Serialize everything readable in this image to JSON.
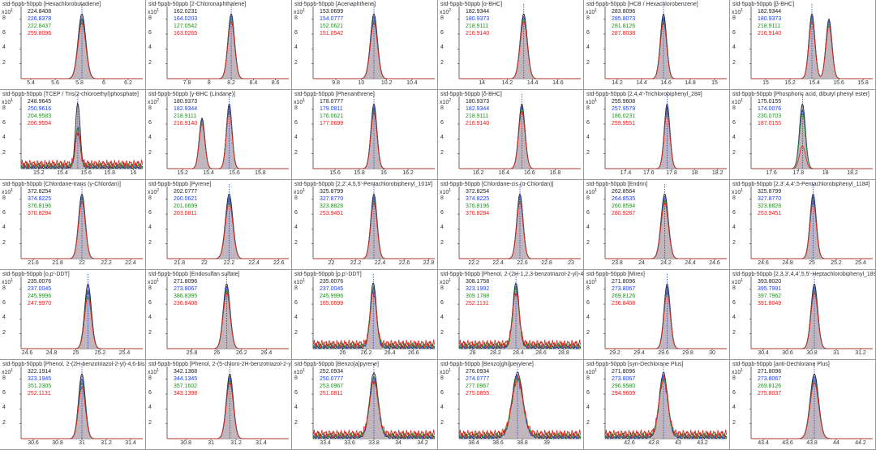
{
  "chart_data": [
    {
      "title": "std-5ppb-50ppb [Hexachlorobutadiene]",
      "mz": [
        "224.8408",
        "226.8378",
        "222.8437",
        "259.8096"
      ],
      "x_ticks": [
        "5.4",
        "5.6",
        "5.8",
        "6",
        "6.2"
      ],
      "xlim": [
        5.32,
        6.32
      ],
      "rt": 5.82,
      "width": 0.032,
      "y_exp": "1",
      "y_ticks": [
        "8",
        "6",
        "4",
        "2"
      ],
      "ymax": 9.5,
      "traces": [
        1.0,
        0.93,
        0.9,
        0.86
      ],
      "second_peak": null,
      "noise": false
    },
    {
      "title": "std-5ppb-50ppb [2-Chloronaphthalene]",
      "mz": [
        "162.0231",
        "164.0203",
        "127.0542",
        "163.0265"
      ],
      "x_ticks": [
        "7.8",
        "8",
        "8.2",
        "8.4",
        "8.6"
      ],
      "xlim": [
        7.62,
        8.72
      ],
      "rt": 8.2,
      "width": 0.03,
      "y_exp": "1",
      "y_ticks": [
        "8",
        "6",
        "4",
        "2"
      ],
      "ymax": 9.5,
      "traces": [
        1.0,
        0.96,
        0.92,
        0.88
      ],
      "second_peak": null,
      "noise": false
    },
    {
      "title": "std-5ppb-50ppb [Acenaphthene]",
      "mz": [
        "153.0699",
        "154.0777",
        "152.0621",
        "151.0542"
      ],
      "x_ticks": [
        "9.8",
        "10",
        "10.2",
        "10.4"
      ],
      "xlim": [
        9.62,
        10.58
      ],
      "rt": 10.1,
      "width": 0.028,
      "y_exp": "1",
      "y_ticks": [
        "8",
        "6",
        "4",
        "2"
      ],
      "ymax": 9.5,
      "traces": [
        1.0,
        0.95,
        0.9,
        0.86
      ],
      "second_peak": null,
      "noise": false
    },
    {
      "title": "std-5ppb-50ppb [α-BHC]",
      "mz": [
        "182.9344",
        "180.9373",
        "218.9111",
        "216.9140"
      ],
      "x_ticks": [
        "14",
        "14.2",
        "14.4",
        "14.6"
      ],
      "xlim": [
        13.82,
        14.78
      ],
      "rt": 14.33,
      "width": 0.028,
      "y_exp": "2",
      "y_ticks": [
        "8",
        "6",
        "4",
        "2"
      ],
      "ymax": 9.5,
      "traces": [
        1.0,
        0.95,
        0.92,
        0.88
      ],
      "second_peak": null,
      "noise": false
    },
    {
      "title": "std-5ppb-50ppb [HCB / Hexachlorobenzene]",
      "mz": [
        "283.8096",
        "285.8073",
        "281.8126",
        "287.8038"
      ],
      "x_ticks": [
        "14.2",
        "14.4",
        "14.6",
        "14.8",
        "15"
      ],
      "xlim": [
        14.1,
        15.1
      ],
      "rt": 14.58,
      "width": 0.026,
      "y_exp": "1",
      "y_ticks": [
        "8",
        "6",
        "4",
        "2"
      ],
      "ymax": 9.5,
      "traces": [
        1.0,
        0.94,
        0.9,
        0.86
      ],
      "second_peak": null,
      "noise": false
    },
    {
      "title": "std-5ppb-50ppb [β-BHC]",
      "mz": [
        "182.9344",
        "180.9373",
        "218.9111",
        "216.9140"
      ],
      "x_ticks": [
        "15",
        "15.2",
        "15.4",
        "15.6",
        "15.8"
      ],
      "xlim": [
        14.88,
        15.88
      ],
      "rt": 15.38,
      "width": 0.025,
      "y_exp": "1",
      "y_ticks": [
        "8",
        "6",
        "4",
        "2"
      ],
      "ymax": 9.5,
      "traces": [
        1.0,
        0.96,
        0.92,
        0.88
      ],
      "second_peak": {
        "rt": 15.52,
        "h": 0.92
      },
      "noise": false
    },
    {
      "title": "std-5ppb-50ppb [TCEP / Tris(2-chloroethyl)phosphate]",
      "mz": [
        "248.9645",
        "250.9616",
        "204.9583",
        "206.9554"
      ],
      "x_ticks": [
        "15.2",
        "15.4",
        "15.6",
        "15.8",
        "16"
      ],
      "xlim": [
        15.05,
        16.08
      ],
      "rt": 15.53,
      "width": 0.02,
      "y_exp": "1",
      "y_ticks": [
        "8",
        "6",
        "4",
        "2"
      ],
      "ymax": 9.5,
      "traces": [
        1.0,
        0.6,
        0.55,
        0.5
      ],
      "second_peak": null,
      "noise": true
    },
    {
      "title": "std-5ppb-50ppb [γ-BHC (Lindane)]",
      "mz": [
        "180.9373",
        "182.9344",
        "218.9111",
        "216.9140"
      ],
      "x_ticks": [
        "15.2",
        "15.4",
        "15.6",
        "15.8"
      ],
      "xlim": [
        15.08,
        16.02
      ],
      "rt": 15.56,
      "width": 0.022,
      "y_exp": "2",
      "y_ticks": [
        "8",
        "6",
        "4",
        "2"
      ],
      "ymax": 9.5,
      "traces": [
        1.0,
        0.96,
        0.92,
        0.88
      ],
      "second_peak": {
        "rt": 15.35,
        "h": 0.78
      },
      "noise": false
    },
    {
      "title": "std-5ppb-50ppb [Phenanthrene]",
      "mz": [
        "178.0777",
        "179.0811",
        "176.0621",
        "177.0699"
      ],
      "x_ticks": [
        "15.6",
        "15.8",
        "16",
        "16.2"
      ],
      "xlim": [
        15.42,
        16.42
      ],
      "rt": 15.92,
      "width": 0.025,
      "y_exp": "1",
      "y_ticks": [
        "8",
        "6",
        "4",
        "2"
      ],
      "ymax": 9.5,
      "traces": [
        1.0,
        0.94,
        0.9,
        0.86
      ],
      "second_peak": null,
      "noise": false
    },
    {
      "title": "std-5ppb-50ppb [δ-BHC]",
      "mz": [
        "180.9373",
        "182.9344",
        "218.9111",
        "216.9140"
      ],
      "x_ticks": [
        "16.2",
        "16.4",
        "16.6",
        "16.8"
      ],
      "xlim": [
        16.05,
        17.0
      ],
      "rt": 16.54,
      "width": 0.025,
      "y_exp": "2",
      "y_ticks": [
        "8",
        "6",
        "4",
        "2"
      ],
      "ymax": 9.5,
      "traces": [
        1.0,
        0.95,
        0.92,
        0.88
      ],
      "second_peak": null,
      "noise": false
    },
    {
      "title": "std-5ppb-50ppb [2,4,4'-Trichlorobiphenyl_28#]",
      "mz": [
        "255.9608",
        "257.9579",
        "186.0231",
        "259.9551"
      ],
      "x_ticks": [
        "17.4",
        "17.6",
        "17.8",
        "18",
        "18.2"
      ],
      "xlim": [
        17.22,
        18.28
      ],
      "rt": 17.76,
      "width": 0.025,
      "y_exp": "1",
      "y_ticks": [
        "8",
        "6",
        "4",
        "2"
      ],
      "ymax": 9.5,
      "traces": [
        1.0,
        0.94,
        0.9,
        0.86
      ],
      "second_peak": null,
      "noise": false
    },
    {
      "title": "std-5ppb-50ppb [Phosphoric acid, dibutyl phenyl ester]",
      "mz": [
        "175.0155",
        "174.0076",
        "230.0703",
        "187.0155"
      ],
      "x_ticks": [
        "17.6",
        "17.8",
        "18",
        "18.2"
      ],
      "xlim": [
        17.45,
        18.35
      ],
      "rt": 17.83,
      "width": 0.022,
      "y_exp": "1",
      "y_ticks": [
        "8",
        "6",
        "4",
        "2"
      ],
      "ymax": 9.5,
      "traces": [
        1.0,
        0.9,
        0.85,
        0.35
      ],
      "second_peak": null,
      "noise": false
    },
    {
      "title": "std-5ppb-50ppb [Chlordane-trans (γ-Chlordan)]",
      "mz": [
        "372.8254",
        "374.8225",
        "376.8196",
        "370.8284"
      ],
      "x_ticks": [
        "21.6",
        "21.8",
        "22",
        "22.2",
        "22.4"
      ],
      "xlim": [
        21.5,
        22.5
      ],
      "rt": 22.0,
      "width": 0.028,
      "y_exp": "1",
      "y_ticks": [
        "8",
        "6",
        "4",
        "2"
      ],
      "ymax": 9.5,
      "traces": [
        1.0,
        0.95,
        0.92,
        0.88
      ],
      "second_peak": null,
      "noise": false
    },
    {
      "title": "std-5ppb-50ppb [Pyrene]",
      "mz": [
        "202.0777",
        "200.0621",
        "201.0699",
        "203.0811"
      ],
      "x_ticks": [
        "21.8",
        "22",
        "22.2",
        "22.4",
        "22.6"
      ],
      "xlim": [
        21.7,
        22.68
      ],
      "rt": 22.2,
      "width": 0.03,
      "y_exp": "2",
      "y_ticks": [
        "8",
        "6",
        "4",
        "2"
      ],
      "ymax": 9.5,
      "traces": [
        1.0,
        0.94,
        0.9,
        0.86
      ],
      "second_peak": null,
      "noise": false
    },
    {
      "title": "std-5ppb-50ppb [2,2',4,5,5'-Pentachlorobiphenyl_101#]",
      "mz": [
        "325.8799",
        "327.8770",
        "323.8828",
        "253.9451"
      ],
      "x_ticks": [
        "22",
        "22.2",
        "22.4",
        "22.6",
        "22.8"
      ],
      "xlim": [
        21.85,
        22.85
      ],
      "rt": 22.35,
      "width": 0.026,
      "y_exp": "1",
      "y_ticks": [
        "8",
        "6",
        "4",
        "2"
      ],
      "ymax": 9.5,
      "traces": [
        1.0,
        0.95,
        0.9,
        0.86
      ],
      "second_peak": null,
      "noise": false
    },
    {
      "title": "std-5ppb-50ppb [Chlordane-cis (α-Chlordan)]",
      "mz": [
        "372.8254",
        "374.8225",
        "376.8196",
        "370.8284"
      ],
      "x_ticks": [
        "22.2",
        "22.4",
        "22.6",
        "22.8",
        "23"
      ],
      "xlim": [
        22.08,
        23.08
      ],
      "rt": 22.58,
      "width": 0.026,
      "y_exp": "1",
      "y_ticks": [
        "8",
        "6",
        "4",
        "2"
      ],
      "ymax": 9.5,
      "traces": [
        1.0,
        0.96,
        0.92,
        0.88
      ],
      "second_peak": null,
      "noise": false
    },
    {
      "title": "std-5ppb-50ppb [Endrin]",
      "mz": [
        "262.8564",
        "264.8535",
        "260.8594",
        "280.9267"
      ],
      "x_ticks": [
        "23.8",
        "24",
        "24.2",
        "24.4",
        "24.6"
      ],
      "xlim": [
        23.7,
        24.7
      ],
      "rt": 24.19,
      "width": 0.03,
      "y_exp": "1",
      "y_ticks": [
        "8",
        "6",
        "4",
        "2"
      ],
      "ymax": 9.5,
      "traces": [
        1.0,
        0.95,
        0.9,
        0.86
      ],
      "second_peak": null,
      "noise": false
    },
    {
      "title": "std-5ppb-50ppb [2,3',4,4',5-Pentachlorobiphenyl_118#]",
      "mz": [
        "325.8799",
        "327.8770",
        "323.8828",
        "253.9451"
      ],
      "x_ticks": [
        "24.6",
        "24.8",
        "25",
        "25.2",
        "25.4"
      ],
      "xlim": [
        24.5,
        25.5
      ],
      "rt": 25.01,
      "width": 0.026,
      "y_exp": "1",
      "y_ticks": [
        "8",
        "6",
        "4",
        "2"
      ],
      "ymax": 9.5,
      "traces": [
        1.0,
        0.95,
        0.9,
        0.86
      ],
      "second_peak": null,
      "noise": false
    },
    {
      "title": "std-5ppb-50ppb [o,p'-DDT]",
      "mz": [
        "235.0076",
        "237.0045",
        "245.9996",
        "247.9970"
      ],
      "x_ticks": [
        "24.6",
        "24.8",
        "25",
        "25.2",
        "25.4"
      ],
      "xlim": [
        24.55,
        25.55
      ],
      "rt": 25.1,
      "width": 0.028,
      "y_exp": "1",
      "y_ticks": [
        "8",
        "6",
        "4",
        "2"
      ],
      "ymax": 9.5,
      "traces": [
        1.0,
        0.9,
        0.86,
        0.8
      ],
      "second_peak": null,
      "noise": false
    },
    {
      "title": "std-5ppb-50ppb [Endosulfan sulfate]",
      "mz": [
        "271.8096",
        "273.8067",
        "386.8395",
        "236.8408"
      ],
      "x_ticks": [
        "25.8",
        "26",
        "26.2",
        "26.4"
      ],
      "xlim": [
        25.6,
        26.58
      ],
      "rt": 26.08,
      "width": 0.028,
      "y_exp": "1",
      "y_ticks": [
        "8",
        "6",
        "4",
        "2"
      ],
      "ymax": 9.5,
      "traces": [
        1.0,
        0.95,
        0.9,
        0.86
      ],
      "second_peak": null,
      "noise": false
    },
    {
      "title": "std-5ppb-50ppb [p,p'-DDT]",
      "mz": [
        "235.0076",
        "237.0045",
        "245.9996",
        "165.0699"
      ],
      "x_ticks": [
        "26",
        "26.2",
        "26.4",
        "26.6"
      ],
      "xlim": [
        25.75,
        26.78
      ],
      "rt": 26.26,
      "width": 0.026,
      "y_exp": "1",
      "y_ticks": [
        "8",
        "6",
        "4",
        "2"
      ],
      "ymax": 9.5,
      "traces": [
        1.0,
        0.9,
        0.86,
        0.8
      ],
      "second_peak": null,
      "noise": true
    },
    {
      "title": "std-5ppb-50ppb [Phenol, 2-(2H-1,2,3-benzotriazol-2-yl)-4,6-bis]",
      "mz": [
        "308.1758",
        "323.1992",
        "309.1788",
        "252.1131"
      ],
      "x_ticks": [
        "28",
        "28.2",
        "28.4",
        "28.6",
        "28.8"
      ],
      "xlim": [
        27.88,
        28.95
      ],
      "rt": 28.38,
      "width": 0.028,
      "y_exp": "1",
      "y_ticks": [
        "8",
        "6",
        "4",
        "2"
      ],
      "ymax": 9.5,
      "traces": [
        1.0,
        0.92,
        0.86,
        0.8
      ],
      "second_peak": null,
      "noise": true
    },
    {
      "title": "std-5ppb-50ppb [Mirex]",
      "mz": [
        "271.8096",
        "273.8067",
        "269.8126",
        "236.8408"
      ],
      "x_ticks": [
        "29.2",
        "29.4",
        "29.6",
        "29.8",
        "30"
      ],
      "xlim": [
        29.12,
        30.12
      ],
      "rt": 29.63,
      "width": 0.026,
      "y_exp": "1",
      "y_ticks": [
        "8",
        "6",
        "4",
        "2"
      ],
      "ymax": 9.5,
      "traces": [
        1.0,
        0.95,
        0.9,
        0.86
      ],
      "second_peak": null,
      "noise": false
    },
    {
      "title": "std-5ppb-50ppb [2,3,3',4,4',5,5'-Heptachlorobiphenyl_189#]",
      "mz": [
        "393.8020",
        "395.7991",
        "397.7962",
        "391.8049"
      ],
      "x_ticks": [
        "30.4",
        "30.6",
        "30.8",
        "31",
        "31.2"
      ],
      "xlim": [
        30.3,
        31.3
      ],
      "rt": 30.82,
      "width": 0.028,
      "y_exp": "1",
      "y_ticks": [
        "8",
        "6",
        "4",
        "2"
      ],
      "ymax": 9.5,
      "traces": [
        1.0,
        0.95,
        0.9,
        0.86
      ],
      "second_peak": null,
      "noise": false
    },
    {
      "title": "std-5ppb-50ppb [Phenol, 2-(2H-benzotriazol-2-yl)-4,6-bis(1,1-dimethylpropyl)-]",
      "mz": [
        "322.1914",
        "323.1945",
        "351.2305",
        "252.1131"
      ],
      "x_ticks": [
        "30.6",
        "30.8",
        "31",
        "31.2",
        "31.4"
      ],
      "xlim": [
        30.5,
        31.5
      ],
      "rt": 31.0,
      "width": 0.028,
      "y_exp": "1",
      "y_ticks": [
        "8",
        "6",
        "4",
        "2"
      ],
      "ymax": 9.5,
      "traces": [
        1.0,
        0.92,
        0.86,
        0.8
      ],
      "second_peak": null,
      "noise": false
    },
    {
      "title": "std-5ppb-50ppb [Phenol, 2-(5-chloro-2H-benzotriazol-2-yl)-4,6-bis]",
      "mz": [
        "342.1368",
        "344.1345",
        "357.1602",
        "343.1398"
      ],
      "x_ticks": [
        "30.8",
        "31",
        "31.2",
        "31.4"
      ],
      "xlim": [
        30.65,
        31.62
      ],
      "rt": 31.15,
      "width": 0.028,
      "y_exp": "1",
      "y_ticks": [
        "8",
        "6",
        "4",
        "2"
      ],
      "ymax": 9.5,
      "traces": [
        1.0,
        0.94,
        0.9,
        0.86
      ],
      "second_peak": null,
      "noise": false
    },
    {
      "title": "std-5ppb-50ppb [Benzo[a]pyrene]",
      "mz": [
        "252.0934",
        "250.0777",
        "253.0967",
        "251.0811"
      ],
      "x_ticks": [
        "33.4",
        "33.6",
        "33.8",
        "34",
        "34.2"
      ],
      "xlim": [
        33.3,
        34.3
      ],
      "rt": 33.8,
      "width": 0.035,
      "y_exp": "1",
      "y_ticks": [
        "8",
        "6",
        "4",
        "2"
      ],
      "ymax": 9.5,
      "traces": [
        1.0,
        0.9,
        0.86,
        0.82
      ],
      "second_peak": null,
      "noise": true
    },
    {
      "title": "std-5ppb-50ppb [Benzo[ghi]perylene]",
      "mz": [
        "276.0934",
        "274.0777",
        "277.0967",
        "275.0855"
      ],
      "x_ticks": [
        "38.4",
        "38.6",
        "38.8",
        "39"
      ],
      "xlim": [
        38.28,
        39.28
      ],
      "rt": 38.76,
      "width": 0.045,
      "y_exp": "1",
      "y_ticks": [
        "8",
        "6",
        "4",
        "2"
      ],
      "ymax": 9.5,
      "traces": [
        1.0,
        0.92,
        0.88,
        0.84
      ],
      "second_peak": null,
      "noise": true
    },
    {
      "title": "std-5ppb-50ppb [syn-Dechlorane Plus]",
      "mz": [
        "271.8096",
        "273.8067",
        "296.9580",
        "294.9609"
      ],
      "x_ticks": [
        "42.6",
        "42.8",
        "43",
        "43.2"
      ],
      "xlim": [
        42.4,
        43.4
      ],
      "rt": 42.88,
      "width": 0.035,
      "y_exp": "1",
      "y_ticks": [
        "8",
        "6",
        "4",
        "2"
      ],
      "ymax": 9.5,
      "traces": [
        1.0,
        0.93,
        0.88,
        0.84
      ],
      "second_peak": null,
      "noise": true
    },
    {
      "title": "std-5ppb-50ppb [anti-Dechlorane Plus]",
      "mz": [
        "271.8096",
        "273.8067",
        "269.8126",
        "275.8037"
      ],
      "x_ticks": [
        "43.4",
        "43.6",
        "43.8",
        "44",
        "44.2"
      ],
      "xlim": [
        43.3,
        44.3
      ],
      "rt": 43.82,
      "width": 0.035,
      "y_exp": "1",
      "y_ticks": [
        "8",
        "6",
        "4",
        "2"
      ],
      "ymax": 9.5,
      "traces": [
        1.0,
        0.95,
        0.9,
        0.86
      ],
      "second_peak": null,
      "noise": false
    }
  ],
  "colors": {
    "trace": [
      "#1a1a1a",
      "#1f3fd6",
      "#2a8a2a",
      "#e02020"
    ],
    "fill": "#b7a9b1",
    "marker": "#1f3fd6",
    "axis": "#444444"
  }
}
